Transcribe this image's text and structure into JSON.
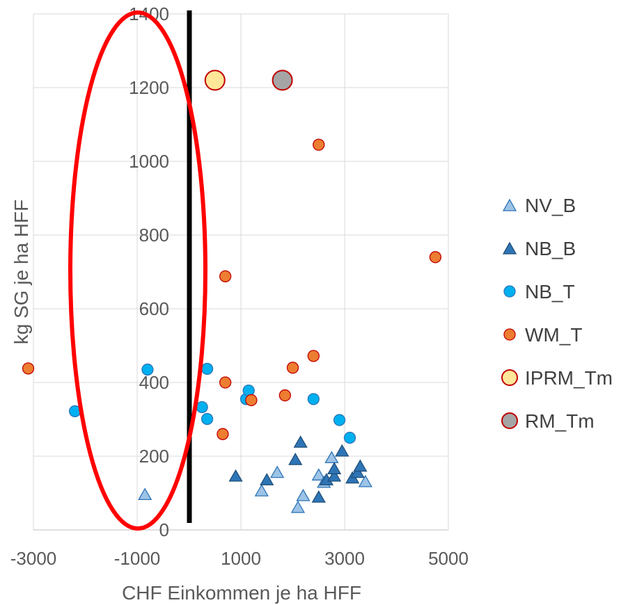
{
  "chart_data": {
    "type": "scatter",
    "xlabel": "CHF Einkommen je ha HFF",
    "ylabel": "kg SG je ha HFF",
    "xlim": [
      -3000,
      5000
    ],
    "ylim": [
      0,
      1400
    ],
    "x_ticks": [
      "-3000",
      "-1000",
      "1000",
      "3000",
      "5000"
    ],
    "y_ticks": [
      "0",
      "200",
      "400",
      "600",
      "800",
      "1000",
      "1200",
      "1400"
    ],
    "grid": "horizontal",
    "legend_position": "right",
    "series": [
      {
        "name": "NV_B",
        "marker": "triangle",
        "fill": "#9DC3E6",
        "stroke": "#2E75B6",
        "points": [
          [
            -850,
            95
          ],
          [
            1700,
            155
          ],
          [
            1400,
            105
          ],
          [
            2200,
            92
          ],
          [
            2100,
            60
          ],
          [
            2500,
            148
          ],
          [
            2600,
            128
          ],
          [
            2750,
            195
          ],
          [
            3400,
            130
          ]
        ]
      },
      {
        "name": "NB_B",
        "marker": "triangle",
        "fill": "#2E75B6",
        "stroke": "#1F4E79",
        "points": [
          [
            900,
            145
          ],
          [
            1500,
            135
          ],
          [
            2050,
            190
          ],
          [
            2150,
            237
          ],
          [
            2500,
            88
          ],
          [
            2650,
            135
          ],
          [
            2800,
            145
          ],
          [
            2800,
            165
          ],
          [
            2950,
            213
          ],
          [
            3150,
            140
          ],
          [
            3250,
            155
          ],
          [
            3300,
            172
          ]
        ]
      },
      {
        "name": "NB_T",
        "marker": "circle",
        "fill": "#00B0F0",
        "stroke": "#2E75B6",
        "points": [
          [
            -2200,
            322
          ],
          [
            -800,
            435
          ],
          [
            250,
            333
          ],
          [
            350,
            301
          ],
          [
            350,
            437
          ],
          [
            1100,
            355
          ],
          [
            1150,
            378
          ],
          [
            2400,
            355
          ],
          [
            2900,
            298
          ],
          [
            3100,
            250
          ]
        ]
      },
      {
        "name": "WM_T",
        "marker": "circle",
        "fill": "#ED7D31",
        "stroke": "#C00000",
        "points": [
          [
            -3100,
            438
          ],
          [
            650,
            260
          ],
          [
            700,
            688
          ],
          [
            700,
            400
          ],
          [
            1200,
            352
          ],
          [
            1850,
            365
          ],
          [
            2000,
            440
          ],
          [
            2400,
            472
          ],
          [
            2500,
            1045
          ],
          [
            4750,
            740
          ]
        ]
      },
      {
        "name": "IPRM_Tm",
        "marker": "circle-large",
        "fill": "#FFE699",
        "stroke": "#C00000",
        "points": [
          [
            500,
            1220
          ]
        ]
      },
      {
        "name": "RM_Tm",
        "marker": "circle-large",
        "fill": "#A5A5A5",
        "stroke": "#C00000",
        "points": [
          [
            1800,
            1220
          ]
        ]
      }
    ],
    "annotations": {
      "vertical_line": {
        "x": 0,
        "color": "#000000"
      },
      "ellipse": {
        "center": [
          -1000,
          700
        ],
        "rx_data": 1400,
        "ry_data": 700,
        "color": "#FF0000"
      }
    }
  }
}
